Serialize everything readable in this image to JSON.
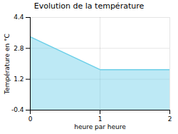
{
  "chart_data": {
    "type": "area",
    "title": "Evolution de la température",
    "xlabel": "heure par heure",
    "ylabel": "Température en °C",
    "x": [
      0,
      1,
      2
    ],
    "values": [
      3.4,
      1.7,
      1.7
    ],
    "color": "#6ccfe8",
    "xlim": [
      0,
      2
    ],
    "ylim": [
      -0.4,
      4.4
    ],
    "xticks": [
      0,
      1,
      2
    ],
    "yticks": [
      -0.4,
      1.2,
      2.8,
      4.4
    ],
    "grid": true
  }
}
